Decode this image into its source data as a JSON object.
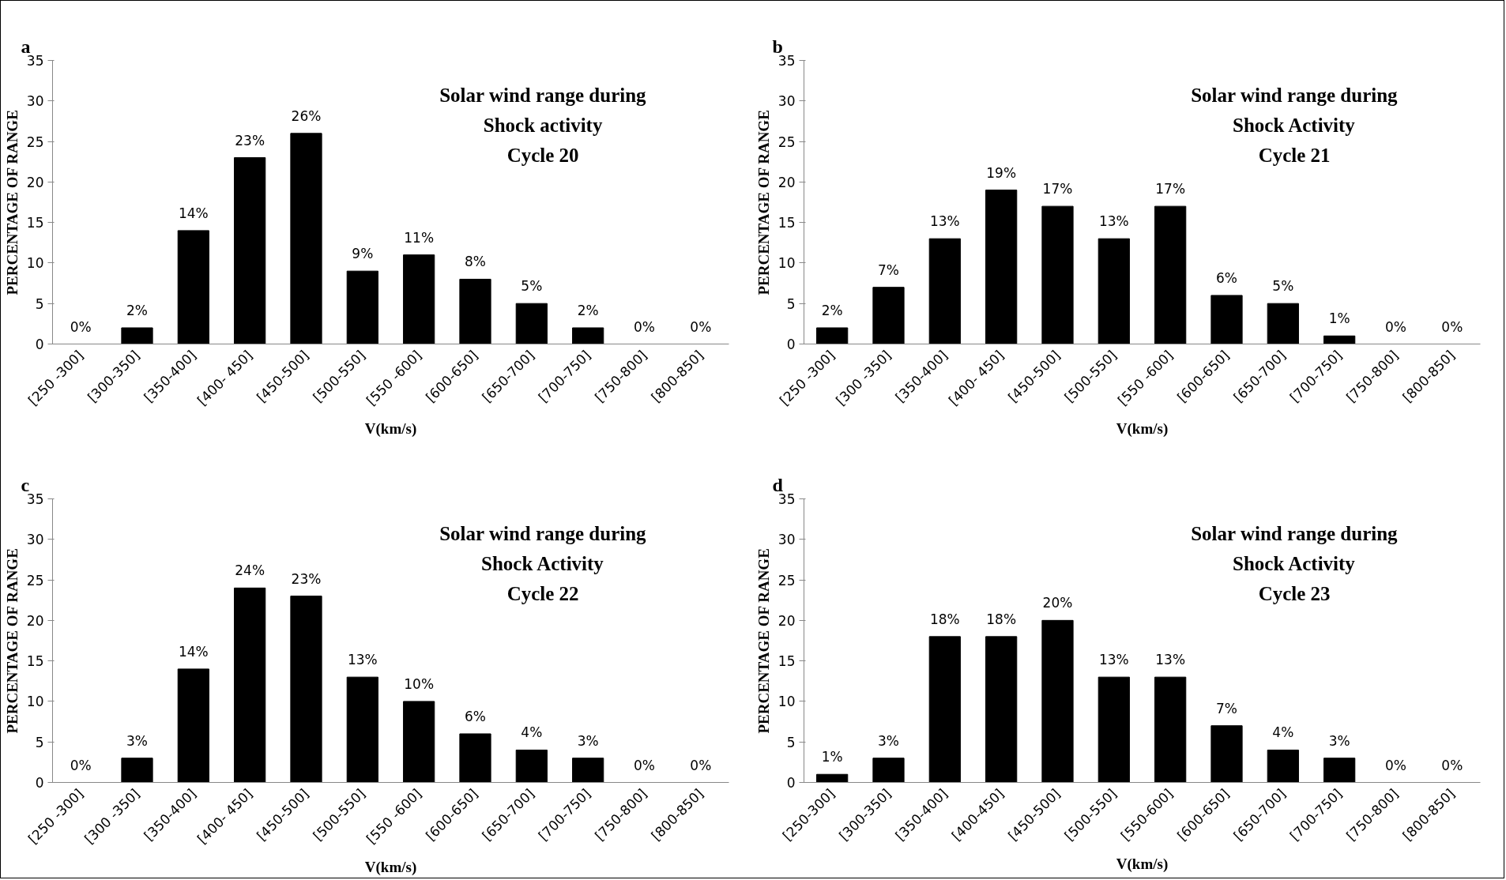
{
  "chart_data": [
    {
      "type": "bar",
      "title": "Solar wind range during\nShock activity\nCycle 20",
      "annotations": [
        "a"
      ],
      "xlabel": "V(km/s)",
      "ylabel": "PERCENTAGE OF RANGE",
      "categories": [
        "[250 -300]",
        "[300-350]",
        "[350-400]",
        "[400- 450]",
        "[450-500]",
        "[500-550]",
        "[550 -600]",
        "[600-650]",
        "[650-700]",
        "[700-750]",
        "[750-800]",
        "[800-850]"
      ],
      "values": [
        0,
        2,
        14,
        23,
        26,
        9,
        11,
        8,
        5,
        2,
        0,
        0
      ],
      "value_labels": [
        "0%",
        "2%",
        "14%",
        "23%",
        "26%",
        "9%",
        "11%",
        "8%",
        "5%",
        "2%",
        "0%",
        "0%"
      ],
      "color": "#000000",
      "ylim": [
        0,
        35
      ],
      "yticks": [
        0,
        5,
        10,
        15,
        20,
        25,
        30,
        35
      ],
      "grid": false
    },
    {
      "type": "bar",
      "title": "Solar wind range during\nShock Activity\nCycle 21",
      "annotations": [
        "b"
      ],
      "xlabel": "V(km/s)",
      "ylabel": "PERCENTAGE OF RANGE",
      "categories": [
        "[250 -300]",
        "[300 -350]",
        "[350-400]",
        "[400- 450]",
        "[450-500]",
        "[500-550]",
        "[550 -600]",
        "[600-650]",
        "[650-700]",
        "[700-750]",
        "[750-800]",
        "[800-850]"
      ],
      "values": [
        2,
        7,
        13,
        19,
        17,
        13,
        17,
        6,
        5,
        1,
        0,
        0
      ],
      "value_labels": [
        "2%",
        "7%",
        "13%",
        "19%",
        "17%",
        "13%",
        "17%",
        "6%",
        "5%",
        "1%",
        "0%",
        "0%"
      ],
      "color": "#000000",
      "ylim": [
        0,
        35
      ],
      "yticks": [
        0,
        5,
        10,
        15,
        20,
        25,
        30,
        35
      ],
      "grid": false
    },
    {
      "type": "bar",
      "title": "Solar wind range during\nShock Activity\nCycle 22",
      "annotations": [
        "c"
      ],
      "xlabel": "V(km/s)",
      "ylabel": "PERCENTAGE OF RANGE",
      "categories": [
        "[250 -300]",
        "[300 -350]",
        "[350-400]",
        "[400- 450]",
        "[450-500]",
        "[500-550]",
        "[550 -600]",
        "[600-650]",
        "[650-700]",
        "[700-750]",
        "[750-800]",
        "[800-850]"
      ],
      "values": [
        0,
        3,
        14,
        24,
        23,
        13,
        10,
        6,
        4,
        3,
        0,
        0
      ],
      "value_labels": [
        "0%",
        "3%",
        "14%",
        "24%",
        "23%",
        "13%",
        "10%",
        "6%",
        "4%",
        "3%",
        "0%",
        "0%"
      ],
      "color": "#000000",
      "ylim": [
        0,
        35
      ],
      "yticks": [
        0,
        5,
        10,
        15,
        20,
        25,
        30,
        35
      ],
      "grid": false
    },
    {
      "type": "bar",
      "title": "Solar wind range during\nShock Activity\nCycle 23",
      "annotations": [
        "d"
      ],
      "xlabel": "V(km/s)",
      "ylabel": "PERCENTAGE OF RANGE",
      "categories": [
        "[250-300]",
        "[300-350]",
        "[350-400]",
        "[400-450]",
        "[450-500]",
        "[500-550]",
        "[550-600]",
        "[600-650]",
        "[650-700]",
        "[700-750]",
        "[750-800]",
        "[800-850]"
      ],
      "values": [
        1,
        3,
        18,
        18,
        20,
        13,
        13,
        7,
        4,
        3,
        0,
        0
      ],
      "value_labels": [
        "1%",
        "3%",
        "18%",
        "18%",
        "20%",
        "13%",
        "13%",
        "7%",
        "4%",
        "3%",
        "0%",
        "0%"
      ],
      "color": "#000000",
      "ylim": [
        0,
        35
      ],
      "yticks": [
        0,
        5,
        10,
        15,
        20,
        25,
        30,
        35
      ],
      "grid": false
    }
  ]
}
